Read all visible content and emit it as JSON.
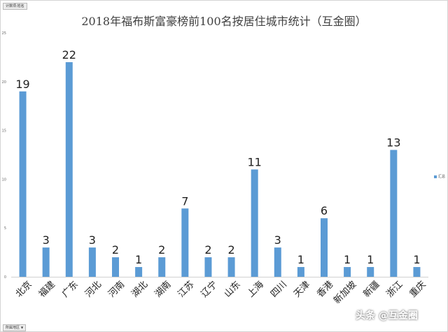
{
  "header": {
    "value_field_label": "计数项:姓名",
    "axis_field_label": "所属地区"
  },
  "chart_data": {
    "type": "bar",
    "title": "2018年福布斯富豪榜前100名按居住城市统计（互金圈）",
    "xlabel": "",
    "ylabel": "",
    "categories": [
      "北京",
      "福建",
      "广东",
      "河北",
      "河南",
      "湖北",
      "湖南",
      "江苏",
      "辽宁",
      "山东",
      "上海",
      "四川",
      "天津",
      "香港",
      "新加坡",
      "新疆",
      "浙江",
      "重庆"
    ],
    "series": [
      {
        "name": "汇总",
        "values": [
          19,
          3,
          22,
          3,
          2,
          1,
          2,
          7,
          2,
          2,
          11,
          3,
          1,
          6,
          1,
          1,
          13,
          1
        ]
      }
    ],
    "ylim": [
      0,
      25
    ],
    "yticks": [
      0,
      5,
      10,
      15,
      20,
      25
    ],
    "grid": false,
    "legend": "right",
    "color": "#5b9bd5",
    "data_labels": true
  },
  "watermark": "头条 @互金圈"
}
